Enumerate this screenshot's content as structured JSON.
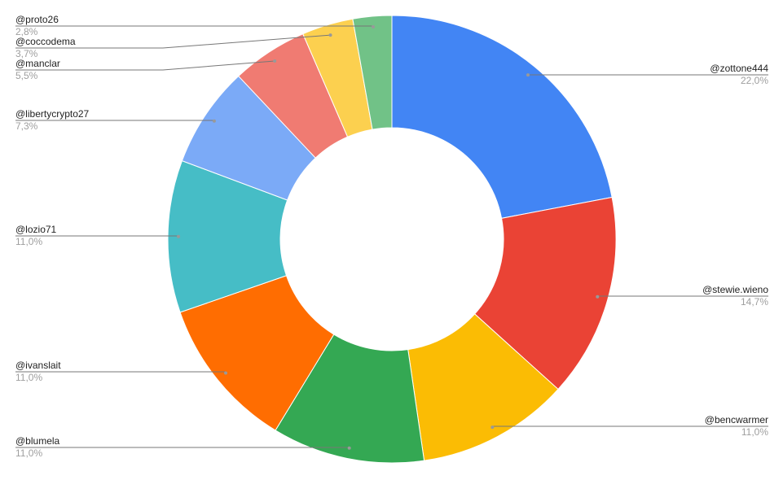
{
  "chart_data": {
    "type": "donut",
    "categories": [
      "@zottone444",
      "@stewie.wieno",
      "@bencwarmer",
      "@blumela",
      "@ivanslait",
      "@lozio71",
      "@libertycrypto27",
      "@manclar",
      "@coccodema",
      "@proto26"
    ],
    "values": [
      22.0,
      14.7,
      11.0,
      11.0,
      11.0,
      11.0,
      7.3,
      5.5,
      3.7,
      2.8
    ],
    "value_labels": [
      "22,0%",
      "14,7%",
      "11,0%",
      "11,0%",
      "11,0%",
      "11,0%",
      "7,3%",
      "5,5%",
      "3,7%",
      "2,8%"
    ],
    "colors": [
      "#4285f4",
      "#ea4335",
      "#fbbc04",
      "#34a853",
      "#ff6d01",
      "#46bdc6",
      "#7baaf7",
      "#f07b72",
      "#fcd04f",
      "#71c287"
    ]
  }
}
